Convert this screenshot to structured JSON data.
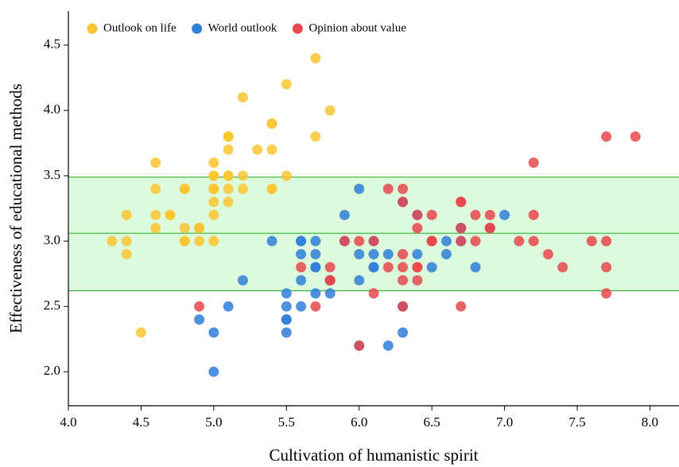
{
  "chart_data": {
    "type": "scatter",
    "xlabel": "Cultivation of humanistic spirit",
    "ylabel": "Effectiveness of educational methods",
    "xlim": [
      4.0,
      8.2
    ],
    "ylim": [
      1.74,
      4.76
    ],
    "xticks": [
      {
        "value": 4,
        "label": "4.0"
      },
      4.5,
      {
        "value": 5,
        "label": "5.0"
      },
      5.5,
      {
        "value": 6,
        "label": "6.0"
      },
      6.5,
      {
        "value": 7,
        "label": "7.0"
      },
      7.5,
      {
        "value": 8,
        "label": "8.0"
      }
    ],
    "yticks": [
      {
        "value": 2,
        "label": "2.0"
      },
      2.5,
      {
        "value": 3,
        "label": "3.0"
      },
      3.5,
      {
        "value": 4,
        "label": "4.0"
      },
      4.5
    ],
    "hlines": [
      2.62,
      3.06,
      3.49
    ],
    "band_color": "#dcfadc",
    "hline_color": "#3cb43c",
    "legend": "upper left",
    "series": [
      {
        "name": "Outlook on life",
        "color": "#fbc531",
        "x": [
          5.1,
          4.9,
          4.7,
          4.6,
          5.0,
          5.4,
          4.6,
          5.0,
          4.4,
          4.9,
          5.4,
          4.8,
          4.8,
          4.3,
          5.8,
          5.7,
          5.4,
          5.1,
          5.7,
          5.1,
          5.4,
          5.1,
          4.6,
          5.1,
          4.8,
          5.0,
          5.0,
          5.2,
          5.2,
          4.7,
          4.8,
          5.4,
          5.2,
          5.5,
          4.9,
          5.0,
          5.5,
          4.9,
          4.4,
          5.1,
          5.0,
          4.5,
          4.4,
          5.0,
          5.1,
          4.8,
          5.1,
          4.6,
          5.3,
          5.0
        ],
        "values": [
          3.5,
          3.0,
          3.2,
          3.1,
          3.6,
          3.9,
          3.4,
          3.4,
          2.9,
          3.1,
          3.7,
          3.4,
          3.0,
          3.0,
          4.0,
          4.4,
          3.9,
          3.5,
          3.8,
          3.8,
          3.4,
          3.7,
          3.6,
          3.3,
          3.4,
          3.0,
          3.4,
          3.5,
          3.4,
          3.2,
          3.1,
          3.4,
          4.1,
          4.2,
          3.1,
          3.2,
          3.5,
          3.1,
          3.0,
          3.4,
          3.5,
          2.3,
          3.2,
          3.5,
          3.8,
          3.0,
          3.8,
          3.2,
          3.7,
          3.3
        ]
      },
      {
        "name": "World outlook",
        "color": "#2f7ed8",
        "x": [
          7.0,
          6.4,
          6.9,
          5.5,
          6.5,
          5.7,
          6.3,
          4.9,
          6.6,
          5.2,
          5.0,
          5.9,
          6.0,
          6.1,
          5.6,
          6.7,
          5.6,
          5.8,
          6.2,
          5.6,
          5.9,
          6.1,
          6.3,
          6.1,
          6.4,
          6.6,
          6.8,
          6.7,
          6.0,
          5.7,
          5.5,
          5.5,
          5.8,
          6.0,
          5.4,
          6.0,
          6.7,
          6.3,
          5.6,
          5.5,
          5.5,
          6.1,
          5.8,
          5.0,
          5.6,
          5.7,
          5.7,
          6.2,
          5.1,
          5.7
        ],
        "values": [
          3.2,
          3.2,
          3.1,
          2.3,
          2.8,
          2.8,
          3.3,
          2.4,
          2.9,
          2.7,
          2.0,
          3.0,
          2.2,
          2.9,
          2.9,
          3.1,
          3.0,
          2.7,
          2.2,
          2.5,
          3.2,
          2.8,
          2.5,
          2.8,
          2.9,
          3.0,
          2.8,
          3.0,
          2.9,
          2.6,
          2.4,
          2.4,
          2.7,
          2.7,
          3.0,
          3.4,
          3.1,
          2.3,
          3.0,
          2.5,
          2.6,
          3.0,
          2.6,
          2.3,
          2.7,
          3.0,
          2.9,
          2.9,
          2.5,
          2.8
        ]
      },
      {
        "name": "Opinion about value",
        "color": "#e8474c",
        "x": [
          6.3,
          5.8,
          7.1,
          6.3,
          6.5,
          7.6,
          4.9,
          7.3,
          6.7,
          7.2,
          6.5,
          6.4,
          6.8,
          5.7,
          5.8,
          6.4,
          6.5,
          7.7,
          7.7,
          6.0,
          6.9,
          5.6,
          7.7,
          6.3,
          6.7,
          7.2,
          6.2,
          6.1,
          6.4,
          7.2,
          7.4,
          7.9,
          6.4,
          6.3,
          6.1,
          7.7,
          6.3,
          6.4,
          6.0,
          6.9,
          6.7,
          6.9,
          5.8,
          6.8,
          6.7,
          6.7,
          6.3,
          6.5,
          6.2,
          5.9
        ],
        "values": [
          3.3,
          2.7,
          3.0,
          2.9,
          3.0,
          3.0,
          2.5,
          2.9,
          2.5,
          3.6,
          3.2,
          2.7,
          3.0,
          2.5,
          2.8,
          3.2,
          3.0,
          3.8,
          2.6,
          2.2,
          3.2,
          2.8,
          2.8,
          2.7,
          3.3,
          3.2,
          2.8,
          3.0,
          2.8,
          3.0,
          2.8,
          3.8,
          2.8,
          2.8,
          2.6,
          3.0,
          3.4,
          3.1,
          3.0,
          3.1,
          3.1,
          3.1,
          2.7,
          3.2,
          3.3,
          3.0,
          2.5,
          3.0,
          3.4,
          3.0
        ]
      }
    ]
  }
}
